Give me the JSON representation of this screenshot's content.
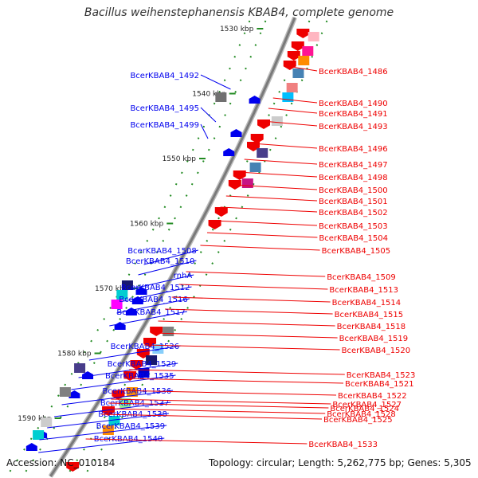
{
  "title": "Bacillus weihenstephanensis KBAB4, complete genome",
  "footer": {
    "accession": "Accession: NC_010184",
    "topology": "Topology: circular; Length: 5,262,775 bp; Genes: 5,305"
  },
  "colors": {
    "forward": "#0000ee",
    "reverse": "#ee0000",
    "scale_tick": "#228b22",
    "axis": "#808080"
  },
  "scale": [
    {
      "label": "1530 kbp",
      "kbp": 1530
    },
    {
      "label": "1540 kbp",
      "kbp": 1540
    },
    {
      "label": "1550 kbp",
      "kbp": 1550
    },
    {
      "label": "1560 kbp",
      "kbp": 1560
    },
    {
      "label": "1570 kbp",
      "kbp": 1570
    },
    {
      "label": "1580 kbp",
      "kbp": 1580
    },
    {
      "label": "1590 kbp",
      "kbp": 1590
    }
  ],
  "left_genes": [
    "BcerKBAB4_1492",
    "BcerKBAB4_1495",
    "BcerKBAB4_1499",
    "BcerKBAB4_1508",
    "BcerKBAB4_1510",
    "rnhA",
    "BcerKBAB4_1512",
    "BcerKBAB4_1516",
    "BcerKBAB4_1517",
    "BcerKBAB4_1526",
    "BcerKBAB4_1529",
    "BcerKBAB4_1535",
    "BcerKBAB4_1536",
    "BcerKBAB4_1537",
    "BcerKBAB4_1538",
    "BcerKBAB4_1539",
    "BcerKBAB4_1540"
  ],
  "right_genes": [
    "BcerKBAB4_1486",
    "BcerKBAB4_1490",
    "BcerKBAB4_1491",
    "BcerKBAB4_1493",
    "BcerKBAB4_1496",
    "BcerKBAB4_1497",
    "BcerKBAB4_1498",
    "BcerKBAB4_1500",
    "BcerKBAB4_1501",
    "BcerKBAB4_1502",
    "BcerKBAB4_1503",
    "BcerKBAB4_1504",
    "BcerKBAB4_1505",
    "BcerKBAB4_1509",
    "BcerKBAB4_1513",
    "BcerKBAB4_1514",
    "BcerKBAB4_1515",
    "BcerKBAB4_1518",
    "BcerKBAB4_1519",
    "BcerKBAB4_1520",
    "BcerKBAB4_1523",
    "BcerKBAB4_1521",
    "BcerKBAB4_1522",
    "BcerKBAB4_1527",
    "BcerKBAB4_1524",
    "BcerKBAB4_1528",
    "BcerKBAB4_1525",
    "BcerKBAB4_1533"
  ]
}
